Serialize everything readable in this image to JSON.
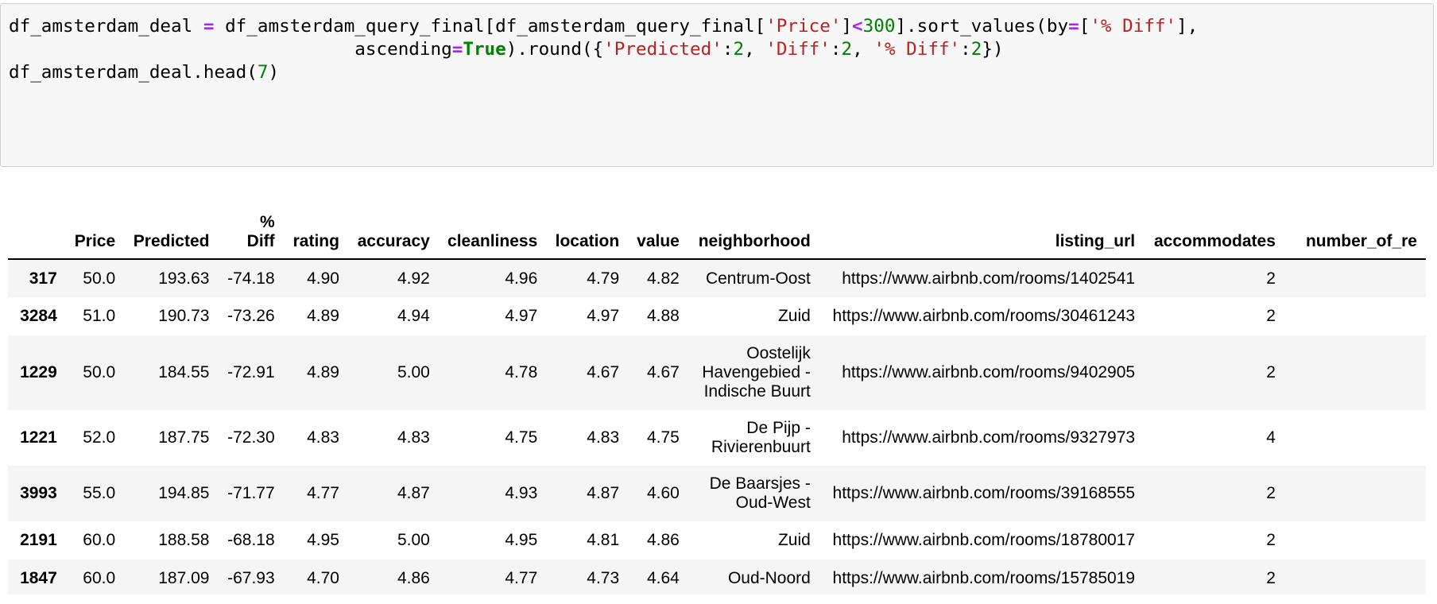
{
  "code_cell": {
    "line1": {
      "var": "df_amsterdam_deal",
      "eq": " = ",
      "a": "df_amsterdam_query_final[df_amsterdam_query_final[",
      "s_price": "'Price'",
      "b": "]",
      "lt": "<",
      "n300": "300",
      "c": "].sort_values(by",
      "eq2": "=",
      "d": "[",
      "s_pdiff": "'% Diff'",
      "e": "],"
    },
    "line2": {
      "indent": "                                ",
      "asc": "ascending",
      "eq": "=",
      "true": "True",
      "a": ").round({",
      "s_pred": "'Predicted'",
      "c1": ":",
      "n1": "2",
      "sep1": ", ",
      "s_diff": "'Diff'",
      "c2": ":",
      "n2": "2",
      "sep2": ", ",
      "s_pdiff": "'% Diff'",
      "c3": ":",
      "n3": "2",
      "end": "})"
    },
    "line3": {
      "a": "df_amsterdam_deal.head(",
      "n7": "7",
      "end": ")"
    }
  },
  "table": {
    "columns": {
      "price": "Price",
      "predicted": "Predicted",
      "pct_diff_1": "%",
      "pct_diff_2": "Diff",
      "rating": "rating",
      "accuracy": "accuracy",
      "cleanliness": "cleanliness",
      "location": "location",
      "value": "value",
      "neighborhood": "neighborhood",
      "listing_url": "listing_url",
      "accommodates": "accommodates",
      "number_of_reviews": "number_of_re"
    },
    "rows": [
      {
        "index": "317",
        "price": "50.0",
        "predicted": "193.63",
        "pct_diff": "-74.18",
        "rating": "4.90",
        "accuracy": "4.92",
        "cleanliness": "4.96",
        "location": "4.79",
        "value": "4.82",
        "neighborhood_1": "Centrum-Oost",
        "neighborhood_2": "",
        "neighborhood_3": "",
        "listing_url": "https://www.airbnb.com/rooms/1402541",
        "accommodates": "2"
      },
      {
        "index": "3284",
        "price": "51.0",
        "predicted": "190.73",
        "pct_diff": "-73.26",
        "rating": "4.89",
        "accuracy": "4.94",
        "cleanliness": "4.97",
        "location": "4.97",
        "value": "4.88",
        "neighborhood_1": "Zuid",
        "neighborhood_2": "",
        "neighborhood_3": "",
        "listing_url": "https://www.airbnb.com/rooms/30461243",
        "accommodates": "2"
      },
      {
        "index": "1229",
        "price": "50.0",
        "predicted": "184.55",
        "pct_diff": "-72.91",
        "rating": "4.89",
        "accuracy": "5.00",
        "cleanliness": "4.78",
        "location": "4.67",
        "value": "4.67",
        "neighborhood_1": "Oostelijk",
        "neighborhood_2": "Havengebied -",
        "neighborhood_3": "Indische Buurt",
        "listing_url": "https://www.airbnb.com/rooms/9402905",
        "accommodates": "2"
      },
      {
        "index": "1221",
        "price": "52.0",
        "predicted": "187.75",
        "pct_diff": "-72.30",
        "rating": "4.83",
        "accuracy": "4.83",
        "cleanliness": "4.75",
        "location": "4.83",
        "value": "4.75",
        "neighborhood_1": "De Pijp -",
        "neighborhood_2": "Rivierenbuurt",
        "neighborhood_3": "",
        "listing_url": "https://www.airbnb.com/rooms/9327973",
        "accommodates": "4"
      },
      {
        "index": "3993",
        "price": "55.0",
        "predicted": "194.85",
        "pct_diff": "-71.77",
        "rating": "4.77",
        "accuracy": "4.87",
        "cleanliness": "4.93",
        "location": "4.87",
        "value": "4.60",
        "neighborhood_1": "De Baarsjes -",
        "neighborhood_2": "Oud-West",
        "neighborhood_3": "",
        "listing_url": "https://www.airbnb.com/rooms/39168555",
        "accommodates": "2"
      },
      {
        "index": "2191",
        "price": "60.0",
        "predicted": "188.58",
        "pct_diff": "-68.18",
        "rating": "4.95",
        "accuracy": "5.00",
        "cleanliness": "4.95",
        "location": "4.81",
        "value": "4.86",
        "neighborhood_1": "Zuid",
        "neighborhood_2": "",
        "neighborhood_3": "",
        "listing_url": "https://www.airbnb.com/rooms/18780017",
        "accommodates": "2"
      },
      {
        "index": "1847",
        "price": "60.0",
        "predicted": "187.09",
        "pct_diff": "-67.93",
        "rating": "4.70",
        "accuracy": "4.86",
        "cleanliness": "4.77",
        "location": "4.73",
        "value": "4.64",
        "neighborhood_1": "Oud-Noord",
        "neighborhood_2": "",
        "neighborhood_3": "",
        "listing_url": "https://www.airbnb.com/rooms/15785019",
        "accommodates": "2"
      }
    ]
  }
}
